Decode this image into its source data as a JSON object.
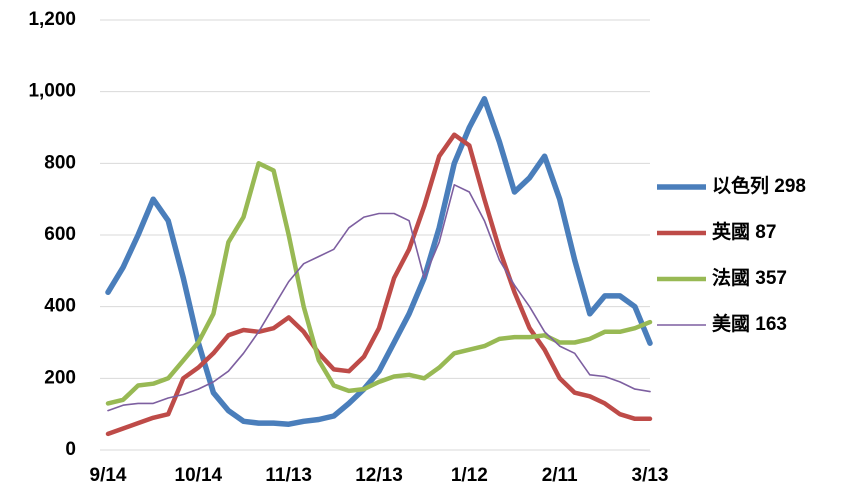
{
  "chart_data": {
    "type": "line",
    "categories": [
      "9/14",
      null,
      null,
      null,
      null,
      null,
      "10/14",
      null,
      null,
      null,
      null,
      null,
      "11/13",
      null,
      null,
      null,
      null,
      null,
      "12/13",
      null,
      null,
      null,
      null,
      null,
      "1/12",
      null,
      null,
      null,
      null,
      null,
      "2/11",
      null,
      null,
      null,
      null,
      null,
      "3/13"
    ],
    "ylim": [
      0,
      1200
    ],
    "yticks": [
      0,
      200,
      400,
      600,
      800,
      {
        "value": 1000,
        "label": "1,000"
      },
      {
        "value": 1200,
        "label": "1,200"
      }
    ],
    "grid": true,
    "series": [
      {
        "name": "以色列 298",
        "color": "#4a7ebb",
        "values": [
          440,
          510,
          600,
          700,
          640,
          480,
          300,
          160,
          110,
          80,
          75,
          75,
          72,
          80,
          85,
          95,
          130,
          170,
          220,
          300,
          380,
          480,
          620,
          800,
          900,
          980,
          860,
          720,
          760,
          820,
          700,
          530,
          380,
          430,
          430,
          400,
          298
        ]
      },
      {
        "name": "英國 87",
        "color": "#be4b48",
        "values": [
          45,
          60,
          75,
          90,
          100,
          200,
          230,
          270,
          320,
          335,
          330,
          340,
          370,
          330,
          270,
          225,
          220,
          260,
          340,
          480,
          560,
          680,
          820,
          880,
          850,
          700,
          560,
          440,
          340,
          280,
          200,
          160,
          150,
          130,
          100,
          87,
          87
        ]
      },
      {
        "name": "法國 357",
        "color": "#98b954",
        "values": [
          130,
          140,
          180,
          185,
          200,
          250,
          300,
          380,
          580,
          650,
          800,
          780,
          600,
          400,
          250,
          180,
          165,
          170,
          190,
          205,
          210,
          200,
          230,
          270,
          280,
          290,
          310,
          315,
          315,
          320,
          300,
          300,
          310,
          330,
          330,
          340,
          357
        ]
      },
      {
        "name": "美國 163",
        "color": "#7d5fa0",
        "values": [
          110,
          125,
          130,
          130,
          145,
          155,
          170,
          190,
          220,
          270,
          330,
          400,
          470,
          520,
          540,
          560,
          620,
          650,
          660,
          660,
          640,
          480,
          580,
          740,
          720,
          640,
          530,
          460,
          400,
          330,
          290,
          270,
          210,
          205,
          190,
          170,
          163
        ]
      }
    ]
  }
}
